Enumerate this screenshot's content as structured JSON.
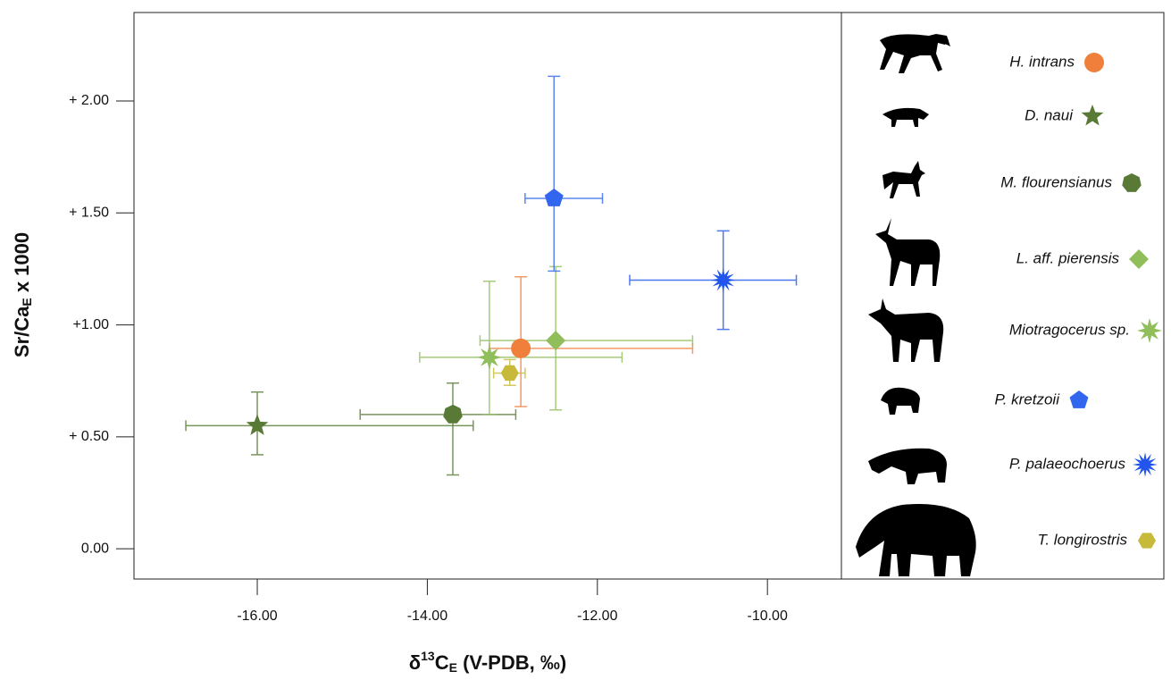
{
  "chart_data": {
    "type": "scatter",
    "xlabel": [
      "δ",
      "13",
      "C",
      "E",
      " (V-PDB, ‰)"
    ],
    "ylabel": [
      "Sr/Ca",
      "E",
      " x 1000"
    ],
    "xlim": [
      -17.45,
      -9.13
    ],
    "ylim": [
      -0.135,
      2.395
    ],
    "xticks": [
      {
        "value": -16,
        "label": "-16.00"
      },
      {
        "value": -14,
        "label": "-14.00"
      },
      {
        "value": -12,
        "label": "-12.00"
      },
      {
        "value": -10,
        "label": "-10.00"
      }
    ],
    "yticks": [
      {
        "value": 0,
        "label": "0.00"
      },
      {
        "value": 0.5,
        "label": "+ 0.50"
      },
      {
        "value": 1,
        "label": "+1.00"
      },
      {
        "value": 1.5,
        "label": "+ 1.50"
      },
      {
        "value": 2,
        "label": "+ 2.00"
      }
    ],
    "series": [
      {
        "name": "H. intrans",
        "color": "#f07f3c",
        "marker": "circle",
        "x": [
          -12.9
        ],
        "y": [
          0.895
        ],
        "x_low": [
          -13.27
        ],
        "x_high": [
          -10.88
        ],
        "y_low": [
          0.635
        ],
        "y_high": [
          1.215
        ]
      },
      {
        "name": "D. naui",
        "color": "#587a36",
        "marker": "star5",
        "x": [
          -16.0
        ],
        "y": [
          0.55
        ],
        "x_low": [
          -16.84
        ],
        "x_high": [
          -13.46
        ],
        "y_low": [
          0.42
        ],
        "y_high": [
          0.7
        ]
      },
      {
        "name": "M. flourensianus",
        "color": "#587a36",
        "marker": "heptagon",
        "x": [
          -13.7
        ],
        "y": [
          0.6
        ],
        "x_low": [
          -14.79
        ],
        "x_high": [
          -12.96
        ],
        "y_low": [
          0.33
        ],
        "y_high": [
          0.74
        ]
      },
      {
        "name": "L. aff. pierensis",
        "color": "#8fbe5a",
        "marker": "diamond",
        "x": [
          -12.49
        ],
        "y": [
          0.93
        ],
        "x_low": [
          -13.38
        ],
        "x_high": [
          -10.88
        ],
        "y_low": [
          0.62
        ],
        "y_high": [
          1.26
        ]
      },
      {
        "name": "Miotragocerus sp.",
        "color": "#8fbe5a",
        "marker": "star8",
        "x": [
          -13.27
        ],
        "y": [
          0.855
        ],
        "x_low": [
          -14.09
        ],
        "x_high": [
          -11.71
        ],
        "y_low": [
          0.6
        ],
        "y_high": [
          1.195
        ]
      },
      {
        "name": "P. kretzoii",
        "color": "#3366ee",
        "marker": "pentagon",
        "x": [
          -12.51
        ],
        "y": [
          1.565
        ],
        "x_low": [
          -12.85
        ],
        "x_high": [
          -11.94
        ],
        "y_low": [
          1.24
        ],
        "y_high": [
          2.11
        ]
      },
      {
        "name": "P. palaeochoerus",
        "color": "#2255ee",
        "marker": "star12",
        "x": [
          -10.52
        ],
        "y": [
          1.2
        ],
        "x_low": [
          -11.62
        ],
        "x_high": [
          -9.66
        ],
        "y_low": [
          0.98
        ],
        "y_high": [
          1.42
        ]
      },
      {
        "name": "T. longirostris",
        "color": "#c7b93a",
        "marker": "hexagon",
        "x": [
          -13.03
        ],
        "y": [
          0.785
        ],
        "x_low": [
          -13.22
        ],
        "x_high": [
          -12.85
        ],
        "y_low": [
          0.73
        ],
        "y_high": [
          0.845
        ]
      }
    ]
  }
}
